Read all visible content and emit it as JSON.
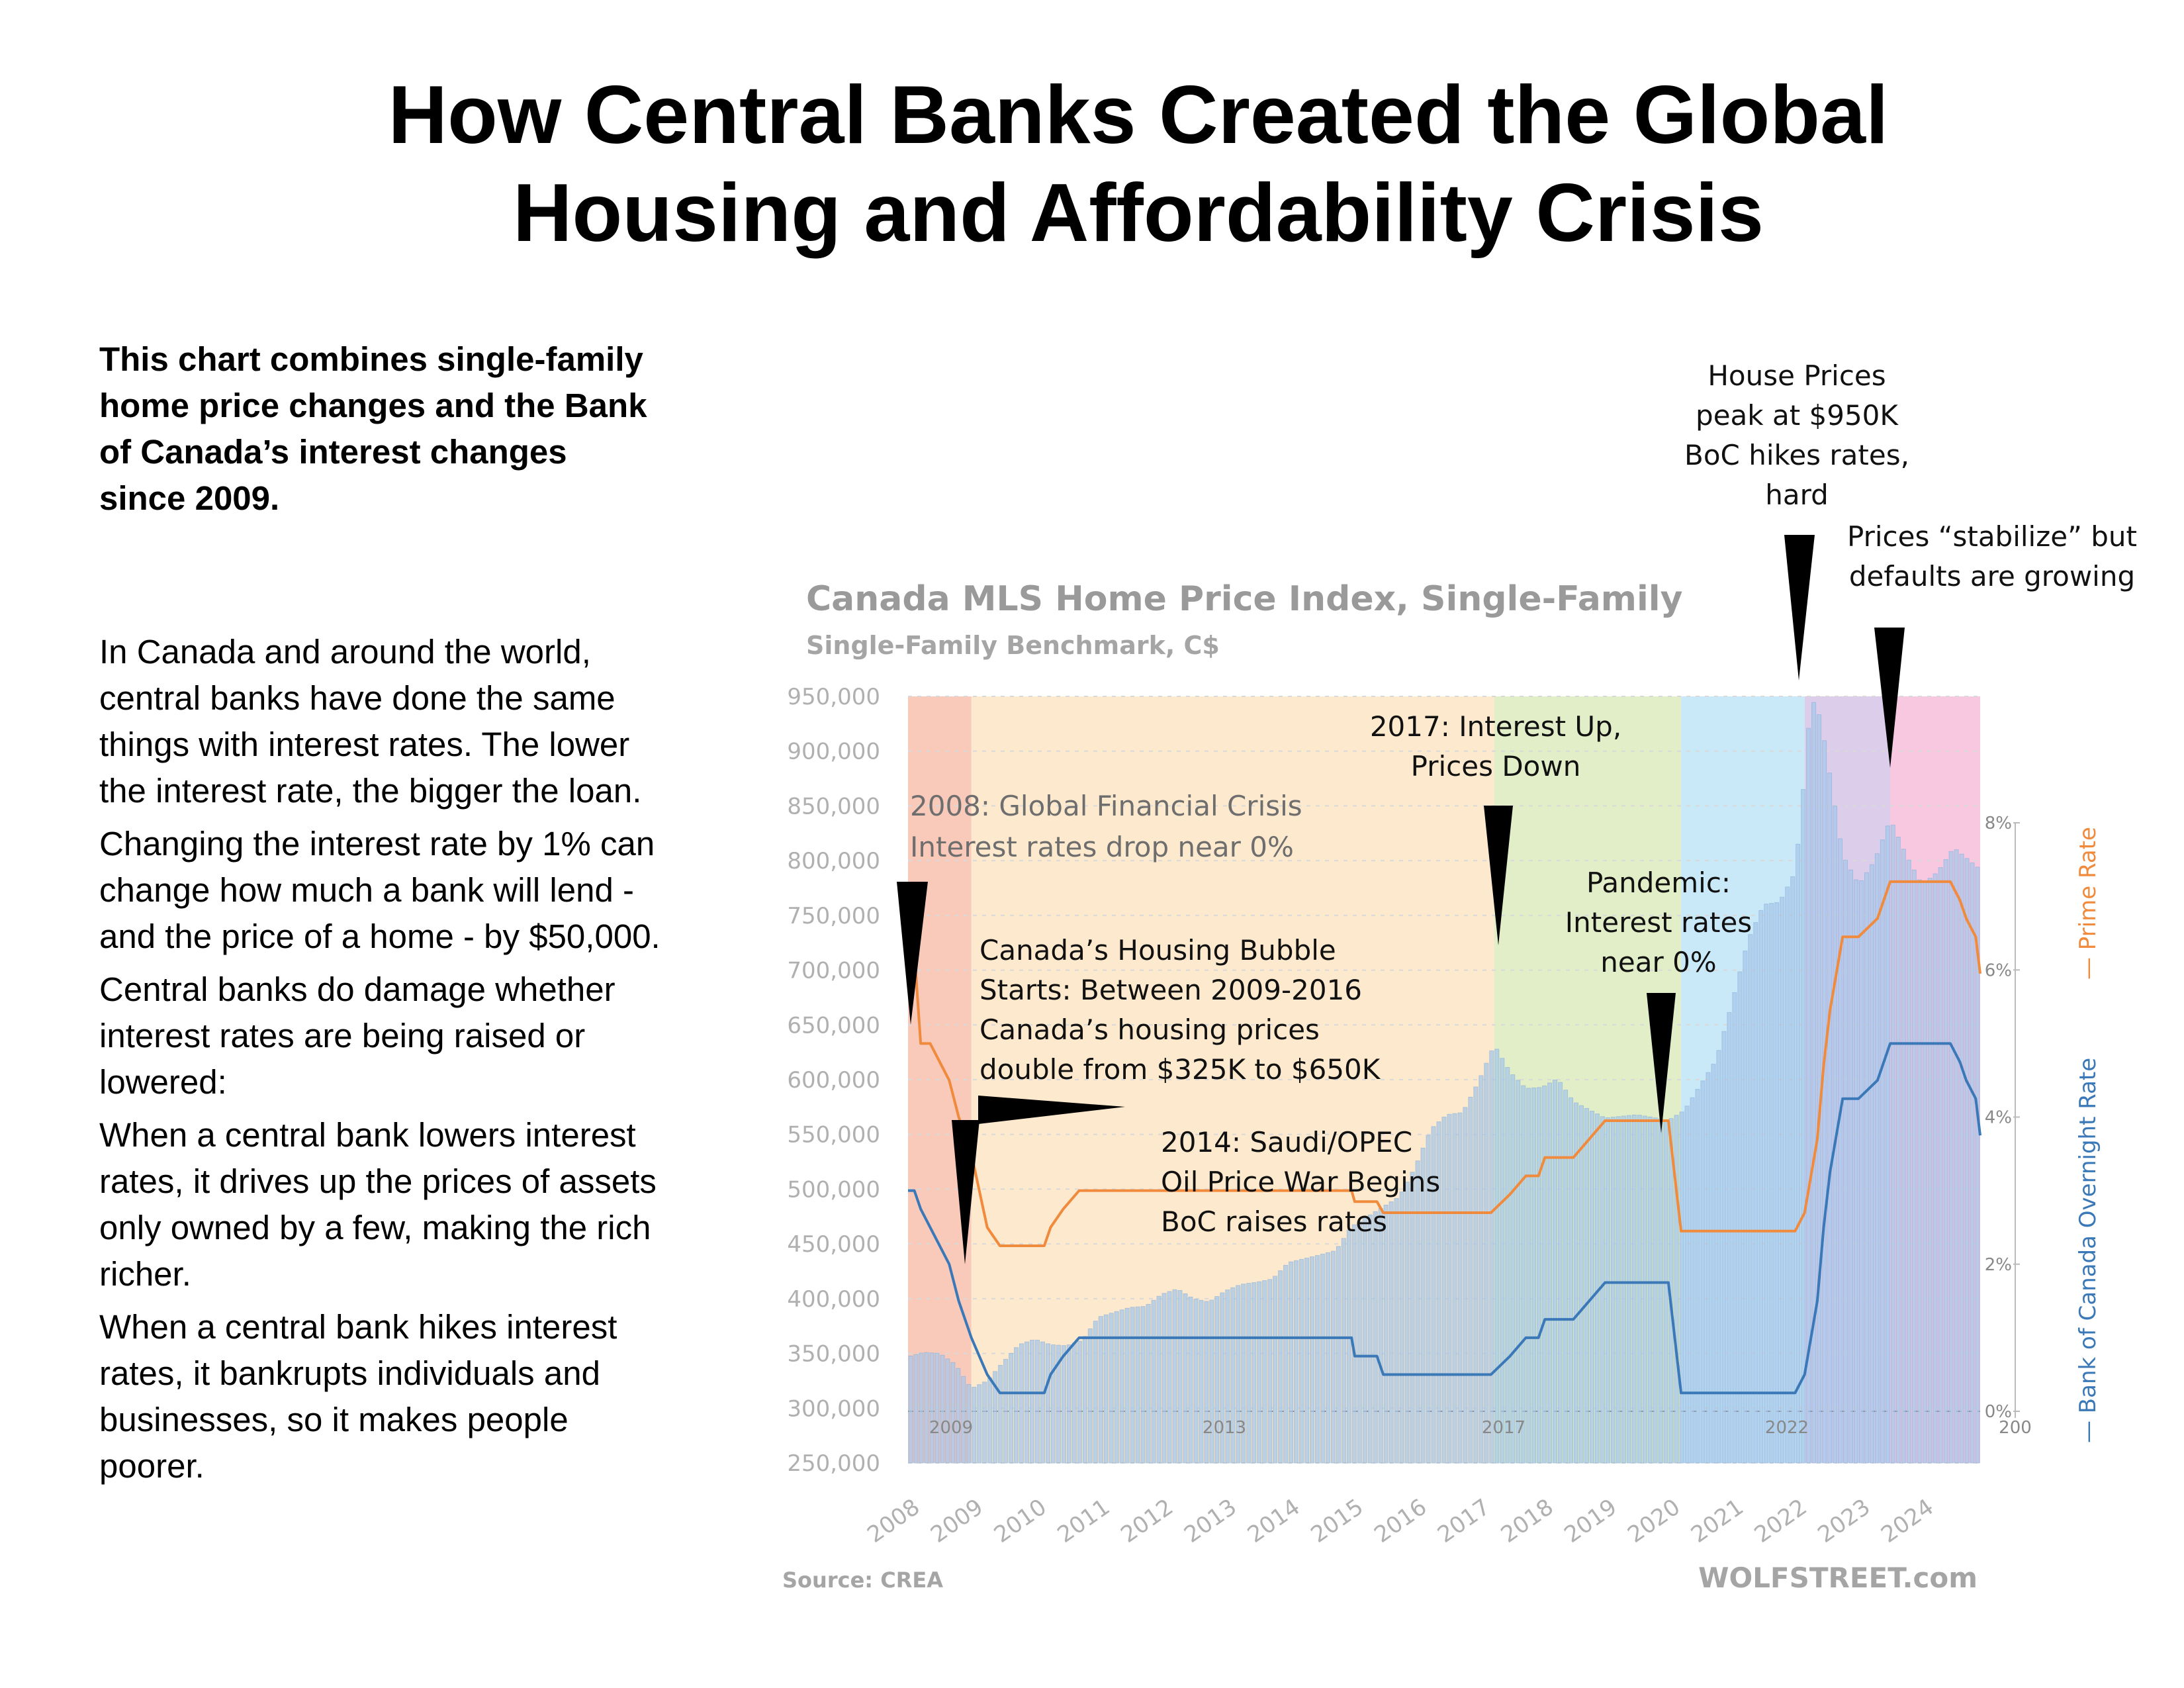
{
  "title": {
    "line1": "How Central Banks Created the Global",
    "line2": "Housing and Affordability Crisis"
  },
  "intro": "This chart combines single-family home price changes and the Bank of Canada’s interest changes since 2009.",
  "paragraphs": [
    "In Canada and around the world, central banks have done the same things with interest rates. The lower the interest rate, the bigger the loan.",
    "Changing the interest rate by 1% can change how much a bank will lend - and the price of a home - by $50,000.",
    "Central banks do damage whether interest rates are being raised or lowered:",
    "When a central bank lowers interest rates, it drives up the prices of assets only owned by a few, making the rich richer.",
    "When a central bank hikes interest rates, it bankrupts individuals and businesses, so it makes people poorer."
  ],
  "colors": {
    "bar": "#a8c8ea",
    "prime_rate": "#f08a3c",
    "overnight_rate": "#3a78b8",
    "axis_text": "#b0b0b0",
    "chart_title": "#9a9a9a"
  },
  "chart_data": {
    "type": "bar",
    "title": "Canada MLS Home Price Index, Single-Family",
    "subtitle": "Single-Family Benchmark, C$",
    "source": "Source: CREA",
    "watermark": "WOLFSTREET.com",
    "ylim": [
      250000,
      950000
    ],
    "y_ticks": [
      "950,000",
      "900,000",
      "850,000",
      "800,000",
      "750,000",
      "700,000",
      "650,000",
      "600,000",
      "550,000",
      "500,000",
      "450,000",
      "400,000",
      "350,000",
      "300,000",
      "250,000"
    ],
    "x_ticks": [
      "2008",
      "2009",
      "2010",
      "2011",
      "2012",
      "2013",
      "2014",
      "2015",
      "2016",
      "2017",
      "2018",
      "2019",
      "2020",
      "2021",
      "2022",
      "2023",
      "2024"
    ],
    "rate_ylim": [
      0,
      8
    ],
    "rate_ticks": [
      "8%",
      "6%",
      "4%",
      "2%",
      "0%"
    ],
    "inner_year_labels": [
      "2009",
      "2013",
      "2017",
      "2022",
      "200"
    ],
    "legend": {
      "prime": "Prime Rate",
      "overnight": "Bank of Canada Overnight Rate"
    },
    "price_series": {
      "name": "Single-Family Benchmark",
      "x": [
        2008.0,
        2008.25,
        2008.5,
        2008.75,
        2009.0,
        2009.25,
        2009.5,
        2009.75,
        2010.0,
        2010.25,
        2010.5,
        2010.75,
        2011.0,
        2011.5,
        2011.75,
        2012.0,
        2012.25,
        2012.5,
        2012.75,
        2013.0,
        2013.25,
        2013.5,
        2013.75,
        2014.0,
        2014.5,
        2014.75,
        2015.0,
        2015.5,
        2015.75,
        2016.0,
        2016.25,
        2016.5,
        2016.75,
        2017.0,
        2017.25,
        2017.5,
        2017.75,
        2018.0,
        2018.25,
        2018.5,
        2019.0,
        2019.5,
        2020.0,
        2020.25,
        2020.5,
        2020.75,
        2021.0,
        2021.25,
        2021.5,
        2021.75,
        2022.0,
        2022.15,
        2022.25,
        2022.4,
        2022.5,
        2022.75,
        2023.0,
        2023.25,
        2023.5,
        2023.75,
        2024.0,
        2024.25,
        2024.5,
        2024.75,
        2024.92
      ],
      "values": [
        347000,
        351000,
        350000,
        340000,
        318000,
        325000,
        342000,
        358000,
        363000,
        358000,
        357000,
        362000,
        383000,
        392000,
        393000,
        404000,
        409000,
        400000,
        397000,
        407000,
        413000,
        415000,
        418000,
        433000,
        440000,
        444000,
        466000,
        484000,
        493000,
        520000,
        555000,
        568000,
        570000,
        598000,
        632000,
        607000,
        592000,
        593000,
        601000,
        580000,
        565000,
        568000,
        563000,
        572000,
        595000,
        618000,
        670000,
        727000,
        760000,
        762000,
        790000,
        880000,
        950000,
        930000,
        895000,
        805000,
        778000,
        800000,
        838000,
        805000,
        778000,
        790000,
        812000,
        800000,
        792000
      ]
    },
    "prime_rate": {
      "name": "Prime Rate",
      "x": [
        2008.0,
        2008.1,
        2008.2,
        2008.35,
        2008.5,
        2008.65,
        2008.8,
        2009.0,
        2009.25,
        2009.45,
        2009.9,
        2010.0,
        2010.15,
        2010.25,
        2010.45,
        2010.7,
        2012.5,
        2013.0,
        2014.5,
        2015.0,
        2015.05,
        2015.4,
        2015.5,
        2016.0,
        2016.5,
        2017.0,
        2017.2,
        2017.5,
        2017.75,
        2017.95,
        2018.05,
        2018.5,
        2018.75,
        2019.0,
        2019.5,
        2020.0,
        2020.1,
        2020.2,
        2020.4,
        2021.0,
        2021.5,
        2022.0,
        2022.15,
        2022.25,
        2022.35,
        2022.45,
        2022.55,
        2022.65,
        2022.75,
        2022.85,
        2023.0,
        2023.3,
        2023.5,
        2023.75,
        2024.0,
        2024.25,
        2024.45,
        2024.6,
        2024.7,
        2024.85,
        2024.92
      ],
      "values": [
        6.25,
        6.25,
        5.0,
        5.0,
        4.75,
        4.5,
        4.0,
        3.5,
        2.5,
        2.25,
        2.25,
        2.25,
        2.25,
        2.5,
        2.75,
        3.0,
        3.0,
        3.0,
        3.0,
        3.0,
        2.85,
        2.85,
        2.7,
        2.7,
        2.7,
        2.7,
        2.7,
        2.95,
        3.2,
        3.2,
        3.45,
        3.45,
        3.7,
        3.95,
        3.95,
        3.95,
        3.2,
        2.45,
        2.45,
        2.45,
        2.45,
        2.45,
        2.7,
        3.2,
        3.7,
        4.7,
        5.45,
        5.95,
        6.45,
        6.45,
        6.45,
        6.7,
        7.2,
        7.2,
        7.2,
        7.2,
        7.2,
        6.95,
        6.7,
        6.45,
        5.95
      ]
    },
    "overnight_rate": {
      "name": "Bank of Canada Overnight Rate",
      "x": [
        2008.0,
        2008.1,
        2008.2,
        2008.35,
        2008.5,
        2008.65,
        2008.8,
        2009.0,
        2009.25,
        2009.45,
        2009.9,
        2010.0,
        2010.15,
        2010.25,
        2010.45,
        2010.7,
        2012.5,
        2013.0,
        2014.5,
        2015.0,
        2015.05,
        2015.4,
        2015.5,
        2016.0,
        2016.5,
        2017.0,
        2017.2,
        2017.5,
        2017.75,
        2017.95,
        2018.05,
        2018.5,
        2018.75,
        2019.0,
        2019.5,
        2020.0,
        2020.1,
        2020.2,
        2020.4,
        2021.0,
        2021.5,
        2022.0,
        2022.15,
        2022.25,
        2022.35,
        2022.45,
        2022.55,
        2022.65,
        2022.75,
        2022.85,
        2023.0,
        2023.3,
        2023.5,
        2023.75,
        2024.0,
        2024.25,
        2024.45,
        2024.6,
        2024.7,
        2024.85,
        2024.92
      ],
      "values": [
        3.0,
        3.0,
        2.75,
        2.5,
        2.25,
        2.0,
        1.5,
        1.0,
        0.5,
        0.25,
        0.25,
        0.25,
        0.25,
        0.5,
        0.75,
        1.0,
        1.0,
        1.0,
        1.0,
        1.0,
        0.75,
        0.75,
        0.5,
        0.5,
        0.5,
        0.5,
        0.5,
        0.75,
        1.0,
        1.0,
        1.25,
        1.25,
        1.5,
        1.75,
        1.75,
        1.75,
        1.0,
        0.25,
        0.25,
        0.25,
        0.25,
        0.25,
        0.5,
        1.0,
        1.5,
        2.5,
        3.25,
        3.75,
        4.25,
        4.25,
        4.25,
        4.5,
        5.0,
        5.0,
        5.0,
        5.0,
        5.0,
        4.75,
        4.5,
        4.25,
        3.75
      ]
    },
    "periods": [
      {
        "from": 2008.0,
        "to": 2009.0,
        "color": "#f5a88f"
      },
      {
        "from": 2009.0,
        "to": 2017.25,
        "color": "#fcdcae"
      },
      {
        "from": 2017.25,
        "to": 2020.2,
        "color": "#cfe3a6"
      },
      {
        "from": 2020.2,
        "to": 2022.15,
        "color": "#a9dbf4"
      },
      {
        "from": 2022.15,
        "to": 2023.5,
        "color": "#c7aede"
      },
      {
        "from": 2023.5,
        "to": 2024.92,
        "color": "#f4a6cf"
      }
    ]
  },
  "annotations": {
    "gfc": [
      "2008: Global Financial Crisis",
      "Interest rates drop near 0%"
    ],
    "bubble": [
      "Canada’s Housing Bubble",
      "Starts: Between 2009-2016",
      "Canada’s housing prices",
      "double from $325K to $650K"
    ],
    "oil": [
      "2014: Saudi/OPEC",
      "Oil Price War Begins",
      "BoC raises rates"
    ],
    "y2017": [
      "2017: Interest Up,",
      "Prices Down"
    ],
    "pandemic": [
      "Pandemic:",
      "Interest rates",
      "near 0%"
    ],
    "peak": [
      "House Prices",
      "peak at $950K",
      "BoC hikes rates,",
      "hard"
    ],
    "stabilize": [
      "Prices “stabilize” but",
      "defaults are growing"
    ]
  }
}
